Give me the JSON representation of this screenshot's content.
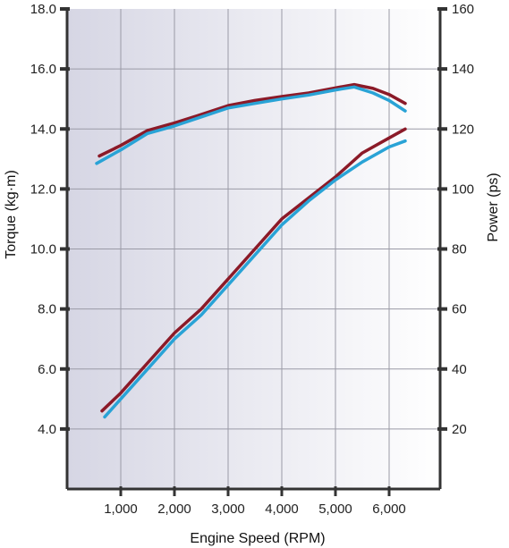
{
  "chart_data": {
    "type": "line",
    "xlabel": "Engine Speed (RPM)",
    "ylabel_left": "Torque (kg·m)",
    "ylabel_right": "Power (ps)",
    "x_ticks": [
      "1,000",
      "2,000",
      "3,000",
      "4,000",
      "5,000",
      "6,000"
    ],
    "x_tick_values": [
      1000,
      2000,
      3000,
      4000,
      5000,
      6000
    ],
    "y_left_ticks": [
      "4.0",
      "6.0",
      "8.0",
      "10.0",
      "12.0",
      "14.0",
      "16.0",
      "18.0"
    ],
    "y_left_tick_values": [
      4,
      6,
      8,
      10,
      12,
      14,
      16,
      18
    ],
    "y_right_ticks": [
      "20",
      "40",
      "60",
      "80",
      "100",
      "120",
      "140",
      "160"
    ],
    "y_right_tick_values": [
      20,
      40,
      60,
      80,
      100,
      120,
      140,
      160
    ],
    "xlim": [
      0,
      6950
    ],
    "ylim_left": [
      2,
      18
    ],
    "ylim_right": [
      0,
      160
    ],
    "grid": true,
    "legend": "none",
    "colors": {
      "series_red": "#8b1a28",
      "series_blue": "#29a3d6",
      "axis": "#333333",
      "grid": "#9a9aa6",
      "background_left": "#d6d6e4",
      "background_right": "#ffffff"
    },
    "series": [
      {
        "color": "#8b1a28",
        "axis": "left",
        "points": [
          [
            600,
            13.1
          ],
          [
            1000,
            13.45
          ],
          [
            1500,
            13.95
          ],
          [
            2000,
            14.2
          ],
          [
            2500,
            14.48
          ],
          [
            3000,
            14.78
          ],
          [
            3500,
            14.95
          ],
          [
            4000,
            15.08
          ],
          [
            4500,
            15.2
          ],
          [
            5000,
            15.37
          ],
          [
            5350,
            15.48
          ],
          [
            5700,
            15.35
          ],
          [
            6000,
            15.15
          ],
          [
            6300,
            14.85
          ]
        ]
      },
      {
        "color": "#29a3d6",
        "axis": "left",
        "points": [
          [
            550,
            12.85
          ],
          [
            1000,
            13.3
          ],
          [
            1500,
            13.85
          ],
          [
            2000,
            14.1
          ],
          [
            2500,
            14.4
          ],
          [
            3000,
            14.7
          ],
          [
            3500,
            14.85
          ],
          [
            4000,
            15.0
          ],
          [
            4500,
            15.13
          ],
          [
            5000,
            15.3
          ],
          [
            5350,
            15.4
          ],
          [
            5700,
            15.2
          ],
          [
            6000,
            14.95
          ],
          [
            6300,
            14.6
          ]
        ]
      },
      {
        "color": "#8b1a28",
        "axis": "right",
        "points": [
          [
            650,
            26
          ],
          [
            1000,
            32
          ],
          [
            1500,
            42
          ],
          [
            2000,
            52
          ],
          [
            2500,
            60
          ],
          [
            3000,
            70
          ],
          [
            3500,
            80
          ],
          [
            4000,
            90
          ],
          [
            4500,
            97
          ],
          [
            5000,
            104
          ],
          [
            5500,
            112
          ],
          [
            6000,
            117
          ],
          [
            6300,
            120
          ]
        ]
      },
      {
        "color": "#29a3d6",
        "axis": "right",
        "points": [
          [
            700,
            24
          ],
          [
            1000,
            30
          ],
          [
            1500,
            40
          ],
          [
            2000,
            50
          ],
          [
            2500,
            58
          ],
          [
            3000,
            68
          ],
          [
            3500,
            78
          ],
          [
            4000,
            88
          ],
          [
            4500,
            96
          ],
          [
            5000,
            103
          ],
          [
            5500,
            109
          ],
          [
            6000,
            114
          ],
          [
            6300,
            116
          ]
        ]
      }
    ]
  }
}
